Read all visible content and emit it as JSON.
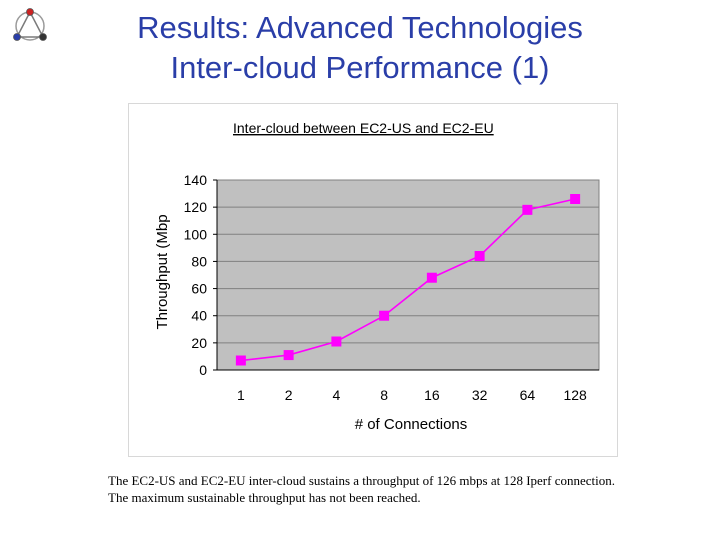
{
  "slide": {
    "title_line1": "Results: Advanced Technologies",
    "title_line2": "Inter-cloud Performance (1)",
    "caption_line1": "The EC2-US and EC2-EU inter-cloud sustains a throughput of 126 mbps at 128 Iperf connection.",
    "caption_line2": "The maximum sustainable throughput has not been reached."
  },
  "logo": {
    "icon": "triangle-node-graph-icon",
    "node_colors": [
      "#b0b0b0",
      "#cc2222",
      "#2a3ea8",
      "#333333"
    ]
  },
  "chart_data": {
    "type": "line",
    "title": "Inter-cloud between EC2-US and EC2-EU",
    "xlabel": "# of Connections",
    "ylabel": "Throughput (Mbp",
    "categories": [
      "1",
      "2",
      "4",
      "8",
      "16",
      "32",
      "64",
      "128"
    ],
    "series": [
      {
        "values": [
          7,
          11,
          21,
          40,
          68,
          84,
          118,
          126
        ],
        "color": "#ff00ff"
      }
    ],
    "ylim": [
      0,
      140
    ],
    "yticks": [
      "0",
      "20",
      "40",
      "60",
      "80",
      "100",
      "120",
      "140"
    ],
    "grid": true,
    "plot_background": "#c0c0c0",
    "gridline_color": "#808080",
    "legend": "none"
  }
}
